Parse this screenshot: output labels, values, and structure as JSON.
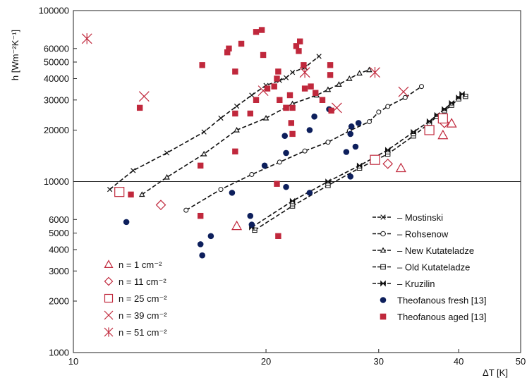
{
  "chart_data": {
    "type": "scatter",
    "xlabel": "ΔT [K]",
    "ylabel": "h [Wm⁻²K⁻¹]",
    "xscale": "log",
    "yscale": "log",
    "xlim": [
      10,
      50
    ],
    "ylim": [
      1000,
      100000
    ],
    "x_ticks": [
      10,
      20,
      30,
      40,
      50
    ],
    "y_ticks": [
      1000,
      2000,
      3000,
      4000,
      5000,
      6000,
      10000,
      20000,
      30000,
      40000,
      50000,
      60000,
      100000
    ],
    "reference_line_y": 10000,
    "grid": false,
    "colors": {
      "theory": "#111111",
      "fresh": "#0d1f5c",
      "experiment": "#c0283c"
    },
    "experiment_legend": [
      {
        "label": "n = 1 cm⁻²",
        "marker": "triangle"
      },
      {
        "label": "n = 11 cm⁻²",
        "marker": "diamond"
      },
      {
        "label": "n = 25 cm⁻²",
        "marker": "square"
      },
      {
        "label": "n = 39 cm⁻²",
        "marker": "x"
      },
      {
        "label": "n = 51 cm⁻²",
        "marker": "asterisk"
      }
    ],
    "model_legend": [
      {
        "label": "– Mostinski",
        "marker": "x"
      },
      {
        "label": "– Rohsenow",
        "marker": "circle"
      },
      {
        "label": "– New Kutateladze",
        "marker": "triangle"
      },
      {
        "label": "– Old Kutateladze",
        "marker": "square-cross"
      },
      {
        "label": "– Kruzilin",
        "marker": "bowtie"
      },
      {
        "label": "Theofanous fresh [13]",
        "marker": "filled-circle"
      },
      {
        "label": "Theofanous aged [13]",
        "marker": "filled-square"
      }
    ],
    "series": [
      {
        "name": "Mostinski",
        "marker": "x",
        "style": "dashed",
        "x": [
          11.4,
          12.4,
          14.0,
          16.0,
          17.0,
          18.0,
          19.0,
          20.0,
          21.0,
          21.5,
          22.0,
          23.0,
          24.2
        ],
        "y": [
          9000,
          11600,
          14700,
          19500,
          23500,
          27600,
          32000,
          36500,
          39000,
          40500,
          43500,
          46500,
          54000
        ]
      },
      {
        "name": "Rohsenow",
        "marker": "circle",
        "style": "dashed",
        "x": [
          15.0,
          17.0,
          19.0,
          21.0,
          23.0,
          25.0,
          27.0,
          29.0,
          30.0,
          31.0,
          33.0,
          35.0
        ],
        "y": [
          6800,
          9000,
          11000,
          13000,
          15100,
          17000,
          19800,
          22400,
          25500,
          27500,
          31000,
          36000
        ]
      },
      {
        "name": "New Kutateladze",
        "marker": "triangle",
        "style": "dashed",
        "x": [
          12.8,
          14.0,
          16.0,
          18.0,
          20.0,
          22.0,
          24.0,
          25.0,
          26.0,
          27.0,
          28.0,
          29.0
        ],
        "y": [
          8400,
          10600,
          14500,
          20000,
          23500,
          28500,
          32000,
          34500,
          37000,
          40000,
          43000,
          45000
        ]
      },
      {
        "name": "Old Kutateladze",
        "marker": "square-cross",
        "style": "dashed",
        "x": [
          19.2,
          22.0,
          25.0,
          28.0,
          31.0,
          34.0,
          36.0,
          37.0,
          38.0,
          39.0,
          40.0,
          41.0
        ],
        "y": [
          5200,
          7200,
          9500,
          12000,
          14500,
          18500,
          22000,
          24000,
          26000,
          28000,
          30500,
          31500
        ]
      },
      {
        "name": "Kruzilin",
        "marker": "bowtie",
        "style": "dashed",
        "x": [
          19.0,
          22.0,
          25.0,
          28.0,
          31.0,
          34.0,
          36.0,
          37.0,
          38.0,
          39.0,
          40.0,
          40.5
        ],
        "y": [
          5400,
          7700,
          10000,
          12400,
          15300,
          19500,
          22500,
          24500,
          26500,
          28800,
          31000,
          32500
        ]
      },
      {
        "name": "Theofanous fresh [13]",
        "marker": "filled-circle",
        "x": [
          12.1,
          15.8,
          15.9,
          16.4,
          17.7,
          18.9,
          19.0,
          19.9,
          21.4,
          21.5,
          21.5,
          23.4,
          23.4,
          23.8,
          25.1,
          27.1,
          27.2,
          27.6,
          27.9,
          26.7,
          27.1
        ],
        "y": [
          5800,
          4300,
          3700,
          4800,
          8600,
          6300,
          5600,
          12400,
          18500,
          14700,
          9300,
          20000,
          8600,
          24000,
          26500,
          19000,
          21000,
          16000,
          22000,
          14900,
          10700
        ]
      },
      {
        "name": "Theofanous aged [13]",
        "marker": "filled-square",
        "x": [
          12.7,
          12.3,
          15.8,
          15.9,
          15.8,
          17.4,
          17.5,
          17.9,
          17.9,
          17.9,
          18.3,
          18.9,
          19.3,
          19.3,
          19.7,
          19.8,
          20.1,
          20.6,
          20.8,
          20.9,
          21.0,
          21.5,
          21.5,
          21.8,
          21.9,
          22.0,
          22.0,
          22.3,
          22.5,
          22.6,
          22.9,
          23.0,
          23.5,
          23.9,
          24.5,
          25.2,
          25.2,
          25.3,
          20.8,
          20.9
        ],
        "y": [
          27000,
          8400,
          12400,
          48000,
          6300,
          57000,
          60000,
          44000,
          25000,
          15000,
          64000,
          25000,
          75000,
          30000,
          77000,
          55000,
          35000,
          36000,
          40000,
          44000,
          30000,
          27000,
          27000,
          32000,
          22000,
          19000,
          27000,
          62000,
          58000,
          66000,
          48000,
          35000,
          36000,
          33000,
          30000,
          48000,
          42000,
          26000,
          9700,
          4800
        ]
      },
      {
        "name": "n = 1 cm⁻²",
        "marker": "triangle",
        "x": [
          18.0,
          32.5,
          37.8,
          39.0
        ],
        "y": [
          5500,
          12000,
          18700,
          21900
        ]
      },
      {
        "name": "n = 11 cm⁻²",
        "marker": "diamond",
        "x": [
          13.7,
          31.0,
          38.0
        ],
        "y": [
          7300,
          12700,
          22000
        ]
      },
      {
        "name": "n = 25 cm⁻²",
        "marker": "square",
        "x": [
          11.8,
          29.6,
          36.0,
          37.8
        ],
        "y": [
          8700,
          13400,
          20000,
          23400
        ]
      },
      {
        "name": "n = 39 cm⁻²",
        "marker": "x",
        "x": [
          12.9,
          19.8,
          25.8,
          32.8
        ],
        "y": [
          31500,
          34000,
          27000,
          33500
        ]
      },
      {
        "name": "n = 51 cm⁻²",
        "marker": "asterisk",
        "x": [
          10.5,
          23.0,
          29.6
        ],
        "y": [
          68500,
          43500,
          43500
        ]
      }
    ]
  }
}
